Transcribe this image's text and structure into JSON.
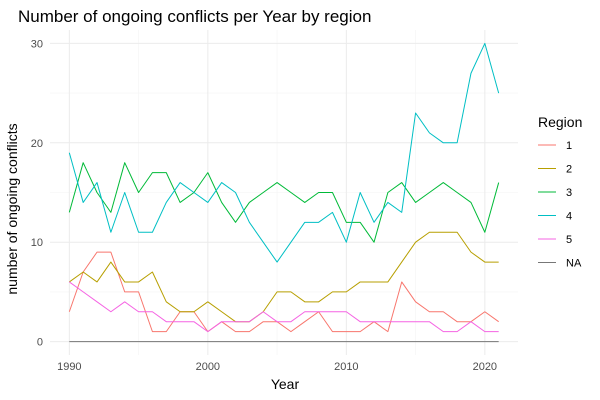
{
  "chart_data": {
    "type": "line",
    "title": "Number of ongoing conflicts per Year by region",
    "xlabel": "Year",
    "ylabel": "number of ongoing conflicts",
    "xlim": [
      1990,
      2021
    ],
    "ylim": [
      0,
      30
    ],
    "xticks": [
      1990,
      2000,
      2010,
      2020
    ],
    "yticks": [
      0,
      10,
      20,
      30
    ],
    "grid": true,
    "legend": {
      "title": "Region",
      "position": "right"
    },
    "x": [
      1990,
      1991,
      1992,
      1993,
      1994,
      1995,
      1996,
      1997,
      1998,
      1999,
      2000,
      2001,
      2002,
      2003,
      2004,
      2005,
      2006,
      2007,
      2008,
      2009,
      2010,
      2011,
      2012,
      2013,
      2014,
      2015,
      2016,
      2017,
      2018,
      2019,
      2020,
      2021
    ],
    "series": [
      {
        "name": "1",
        "color": "#F8766D",
        "values": [
          3,
          7,
          9,
          9,
          5,
          5,
          1,
          1,
          3,
          3,
          1,
          2,
          1,
          1,
          2,
          2,
          1,
          2,
          3,
          1,
          1,
          1,
          2,
          1,
          6,
          4,
          3,
          3,
          2,
          2,
          3,
          2
        ]
      },
      {
        "name": "2",
        "color": "#B79F00",
        "values": [
          6,
          7,
          6,
          8,
          6,
          6,
          7,
          4,
          3,
          3,
          4,
          3,
          2,
          2,
          3,
          5,
          5,
          4,
          4,
          5,
          5,
          6,
          6,
          6,
          8,
          10,
          11,
          11,
          11,
          9,
          8,
          8
        ]
      },
      {
        "name": "3",
        "color": "#00BA38",
        "values": [
          13,
          18,
          15,
          13,
          18,
          15,
          17,
          17,
          14,
          15,
          17,
          14,
          12,
          14,
          15,
          16,
          15,
          14,
          15,
          15,
          12,
          12,
          10,
          15,
          16,
          14,
          15,
          16,
          15,
          14,
          11,
          16
        ]
      },
      {
        "name": "4",
        "color": "#00BFC4",
        "values": [
          19,
          14,
          16,
          11,
          15,
          11,
          11,
          14,
          16,
          15,
          14,
          16,
          15,
          12,
          10,
          8,
          10,
          12,
          12,
          13,
          10,
          15,
          12,
          14,
          13,
          23,
          21,
          20,
          20,
          27,
          30,
          25
        ]
      },
      {
        "name": "5",
        "color": "#F564E3",
        "values": [
          6,
          5,
          4,
          3,
          4,
          3,
          3,
          2,
          2,
          2,
          1,
          2,
          2,
          2,
          3,
          2,
          2,
          3,
          3,
          3,
          3,
          2,
          2,
          2,
          2,
          2,
          2,
          1,
          1,
          2,
          1,
          1
        ]
      },
      {
        "name": "NA",
        "color": "#777777",
        "values": [
          0,
          0,
          0,
          0,
          0,
          0,
          0,
          0,
          0,
          0,
          0,
          0,
          0,
          0,
          0,
          0,
          0,
          0,
          0,
          0,
          0,
          0,
          0,
          0,
          0,
          0,
          0,
          0,
          0,
          0,
          0,
          0
        ]
      }
    ]
  }
}
